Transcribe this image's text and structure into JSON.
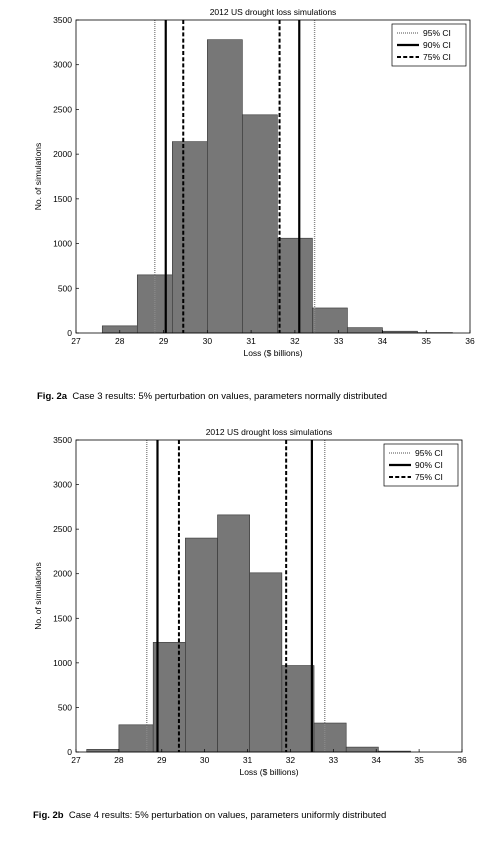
{
  "chart_data": [
    {
      "type": "bar",
      "title": "2012 US drought loss simulations",
      "xlabel": "Loss ($ billions)",
      "ylabel": "No. of simulations",
      "xlim": [
        27,
        36
      ],
      "ylim": [
        0,
        3500
      ],
      "xticks": [
        27,
        28,
        29,
        30,
        31,
        32,
        33,
        34,
        35,
        36
      ],
      "yticks": [
        0,
        500,
        1000,
        1500,
        2000,
        2500,
        3000,
        3500
      ],
      "bin_edges": [
        27.6,
        28.4,
        29.2,
        30.0,
        30.8,
        31.6,
        32.4,
        33.2,
        34.0,
        34.8,
        35.6
      ],
      "values": [
        80,
        650,
        2140,
        3280,
        2440,
        1060,
        280,
        60,
        20,
        5
      ],
      "ci_lines": [
        {
          "name": "95% CI",
          "style": "dotted",
          "x": [
            28.8,
            32.45
          ]
        },
        {
          "name": "90% CI",
          "style": "solid",
          "x": [
            29.05,
            32.1
          ]
        },
        {
          "name": "75% CI",
          "style": "dashed",
          "x": [
            29.45,
            31.65
          ]
        }
      ],
      "legend": [
        "95% CI",
        "90% CI",
        "75% CI"
      ],
      "legend_position": "top-right",
      "grid": false,
      "bar_color": "#777777",
      "caption_label": "Fig. 2a",
      "caption_text": "Case 3 results: 5% perturbation on values, parameters normally distributed"
    },
    {
      "type": "bar",
      "title": "2012 US drought loss simulations",
      "xlabel": "Loss ($ billions)",
      "ylabel": "No. of simulations",
      "xlim": [
        27,
        36
      ],
      "ylim": [
        0,
        3500
      ],
      "xticks": [
        27,
        28,
        29,
        30,
        31,
        32,
        33,
        34,
        35,
        36
      ],
      "yticks": [
        0,
        500,
        1000,
        1500,
        2000,
        2500,
        3000,
        3500
      ],
      "bin_edges": [
        27.25,
        28.0,
        28.8,
        29.55,
        30.3,
        31.05,
        31.8,
        32.55,
        33.3,
        34.05,
        34.8
      ],
      "values": [
        30,
        305,
        1230,
        2400,
        2660,
        2010,
        970,
        325,
        55,
        10
      ],
      "ci_lines": [
        {
          "name": "95% CI",
          "style": "dotted",
          "x": [
            28.65,
            32.8
          ]
        },
        {
          "name": "90% CI",
          "style": "solid",
          "x": [
            28.9,
            32.5
          ]
        },
        {
          "name": "75% CI",
          "style": "dashed",
          "x": [
            29.4,
            31.9
          ]
        }
      ],
      "legend": [
        "95% CI",
        "90% CI",
        "75% CI"
      ],
      "legend_position": "top-right",
      "grid": false,
      "bar_color": "#777777",
      "caption_label": "Fig. 2b",
      "caption_text": "Case 4 results: 5% perturbation on values, parameters uniformly distributed"
    }
  ]
}
